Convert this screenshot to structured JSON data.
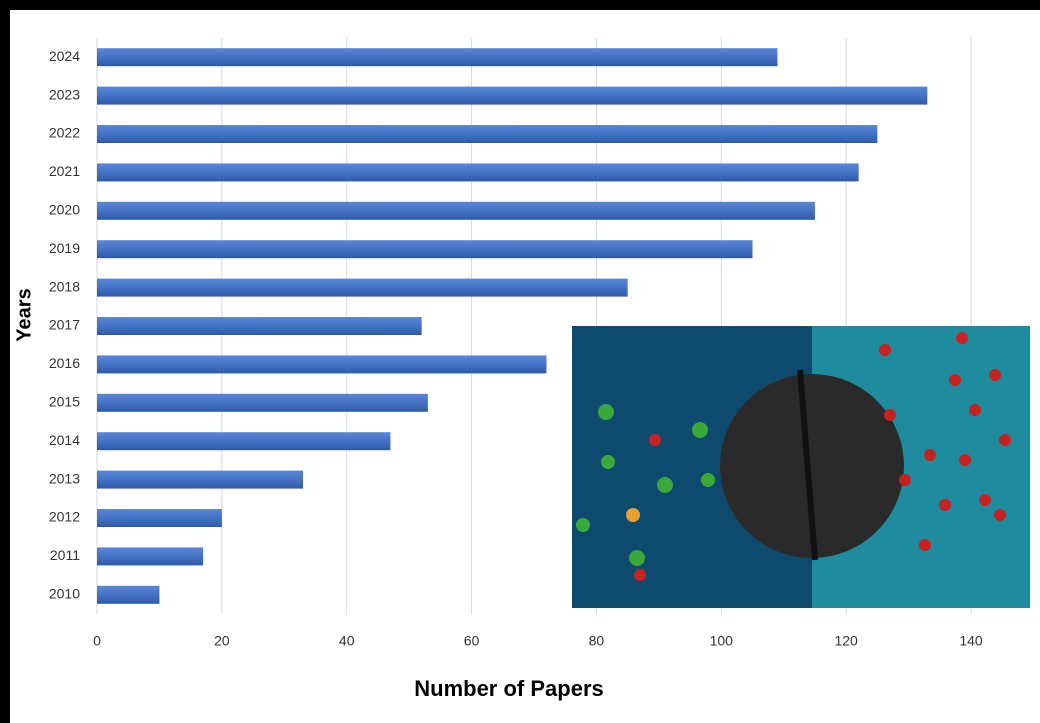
{
  "chart_data": {
    "type": "hbar",
    "x_label": "Number of Papers",
    "y_label": "Years",
    "categories": [
      "2024",
      "2023",
      "2022",
      "2021",
      "2020",
      "2019",
      "2018",
      "2017",
      "2016",
      "2015",
      "2014",
      "2013",
      "2012",
      "2011",
      "2010"
    ],
    "values": [
      109,
      133,
      125,
      122,
      115,
      105,
      85,
      52,
      72,
      53,
      47,
      33,
      20,
      17,
      10
    ],
    "color": "#4472c4",
    "xlim": [
      0,
      150
    ],
    "xticks": [
      0,
      20,
      40,
      60,
      80,
      100,
      120,
      140
    ],
    "grid": true
  }
}
